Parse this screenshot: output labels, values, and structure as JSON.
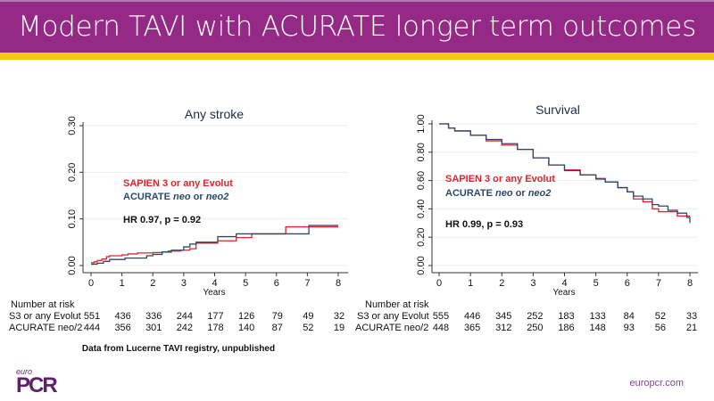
{
  "header": {
    "title": "Modern TAVI with ACURATE longer term outcomes"
  },
  "colors": {
    "header_bg": "#952a86",
    "accent_bar": "#f4c817",
    "series_red": "#e0232b",
    "series_blue": "#2b4a6b"
  },
  "chart_data": [
    {
      "type": "line",
      "step": true,
      "title": "Any stroke",
      "xlabel": "Years",
      "ylabel": "",
      "xlim": [
        0,
        8
      ],
      "ylim": [
        0,
        0.3
      ],
      "xticks": [
        "0",
        "1",
        "2",
        "3",
        "4",
        "5",
        "6",
        "7",
        "8"
      ],
      "yticks": [
        "0.00",
        "0.10",
        "0.20",
        "0.30"
      ],
      "grid": true,
      "legend_placement": "center-left",
      "legend": [
        "SAPIEN 3 or any Evolut",
        "ACURATE neo or neo2"
      ],
      "annotation": "HR 0.97, p = 0.92",
      "series": [
        {
          "name": "SAPIEN 3 or any Evolut",
          "color": "#e0232b",
          "x": [
            0,
            0.1,
            0.2,
            0.35,
            0.5,
            0.6,
            1.0,
            1.2,
            1.5,
            2.0,
            2.3,
            2.5,
            2.9,
            3.2,
            3.4,
            4.0,
            4.1,
            4.7,
            5.2,
            6.3,
            8.0
          ],
          "y": [
            0.006,
            0.008,
            0.011,
            0.014,
            0.019,
            0.021,
            0.023,
            0.025,
            0.027,
            0.028,
            0.029,
            0.031,
            0.033,
            0.036,
            0.048,
            0.048,
            0.053,
            0.06,
            0.068,
            0.083,
            0.083
          ]
        },
        {
          "name": "ACURATE neo or neo2",
          "color": "#2b4a6b",
          "x": [
            0,
            0.2,
            0.4,
            0.6,
            1.1,
            1.8,
            2.0,
            2.3,
            2.6,
            3.0,
            3.2,
            3.4,
            4.1,
            4.7,
            7.05,
            8.0
          ],
          "y": [
            0.003,
            0.005,
            0.009,
            0.013,
            0.016,
            0.021,
            0.024,
            0.029,
            0.033,
            0.04,
            0.046,
            0.05,
            0.062,
            0.068,
            0.086,
            0.086
          ]
        }
      ],
      "number_at_risk": {
        "label": "Number at risk",
        "rows": [
          {
            "name": "S3 or any Evolut",
            "values": [
              "551",
              "436",
              "336",
              "244",
              "177",
              "126",
              "79",
              "49",
              "32"
            ]
          },
          {
            "name": "ACURATE neo/2",
            "values": [
              "444",
              "356",
              "301",
              "242",
              "178",
              "140",
              "87",
              "52",
              "19"
            ]
          }
        ]
      }
    },
    {
      "type": "line",
      "step": true,
      "title": "Survival",
      "xlabel": "Years",
      "ylabel": "",
      "xlim": [
        0,
        8
      ],
      "ylim": [
        0,
        1.0
      ],
      "xticks": [
        "0",
        "1",
        "2",
        "3",
        "4",
        "5",
        "6",
        "7",
        "8"
      ],
      "yticks": [
        "0.00",
        "0.20",
        "0.40",
        "0.60",
        "0.80",
        "1.00"
      ],
      "grid": true,
      "legend_placement": "center-left",
      "legend": [
        "SAPIEN 3 or any Evolut",
        "ACURATE neo or neo2"
      ],
      "annotation": "HR 0.99, p = 0.93",
      "series": [
        {
          "name": "SAPIEN 3 or any Evolut",
          "color": "#e0232b",
          "x": [
            0,
            0.3,
            0.5,
            1.0,
            1.5,
            2.0,
            2.5,
            3.0,
            3.5,
            4.0,
            4.5,
            5.0,
            5.3,
            5.7,
            6.0,
            6.2,
            6.5,
            6.8,
            7.0,
            7.3,
            7.6,
            8.0
          ],
          "y": [
            1.0,
            0.97,
            0.95,
            0.92,
            0.88,
            0.85,
            0.82,
            0.76,
            0.71,
            0.675,
            0.64,
            0.615,
            0.59,
            0.55,
            0.52,
            0.47,
            0.45,
            0.4,
            0.38,
            0.38,
            0.35,
            0.35
          ]
        },
        {
          "name": "ACURATE neo or neo2",
          "color": "#2b4a6b",
          "x": [
            0,
            0.3,
            0.5,
            1.0,
            1.5,
            2.0,
            2.5,
            3.0,
            3.5,
            4.0,
            4.5,
            5.0,
            5.3,
            5.7,
            6.0,
            6.2,
            6.5,
            6.8,
            7.0,
            7.3,
            7.6,
            7.9,
            8.0
          ],
          "y": [
            1.0,
            0.97,
            0.95,
            0.92,
            0.89,
            0.86,
            0.82,
            0.76,
            0.71,
            0.67,
            0.64,
            0.61,
            0.59,
            0.55,
            0.52,
            0.49,
            0.47,
            0.43,
            0.42,
            0.39,
            0.37,
            0.34,
            0.3
          ]
        }
      ],
      "number_at_risk": {
        "label": "Number at risk",
        "rows": [
          {
            "name": "S3 or any Evolut",
            "values": [
              "555",
              "446",
              "345",
              "252",
              "183",
              "133",
              "84",
              "52",
              "33"
            ]
          },
          {
            "name": "ACURATE neo/2",
            "values": [
              "448",
              "365",
              "312",
              "250",
              "186",
              "148",
              "93",
              "56",
              "21"
            ]
          }
        ]
      }
    }
  ],
  "footer": {
    "source_note": "Data from Lucerne TAVI registry, unpublished",
    "logo_small": "euro",
    "logo_big": "PCR",
    "website": "europcr.com"
  }
}
